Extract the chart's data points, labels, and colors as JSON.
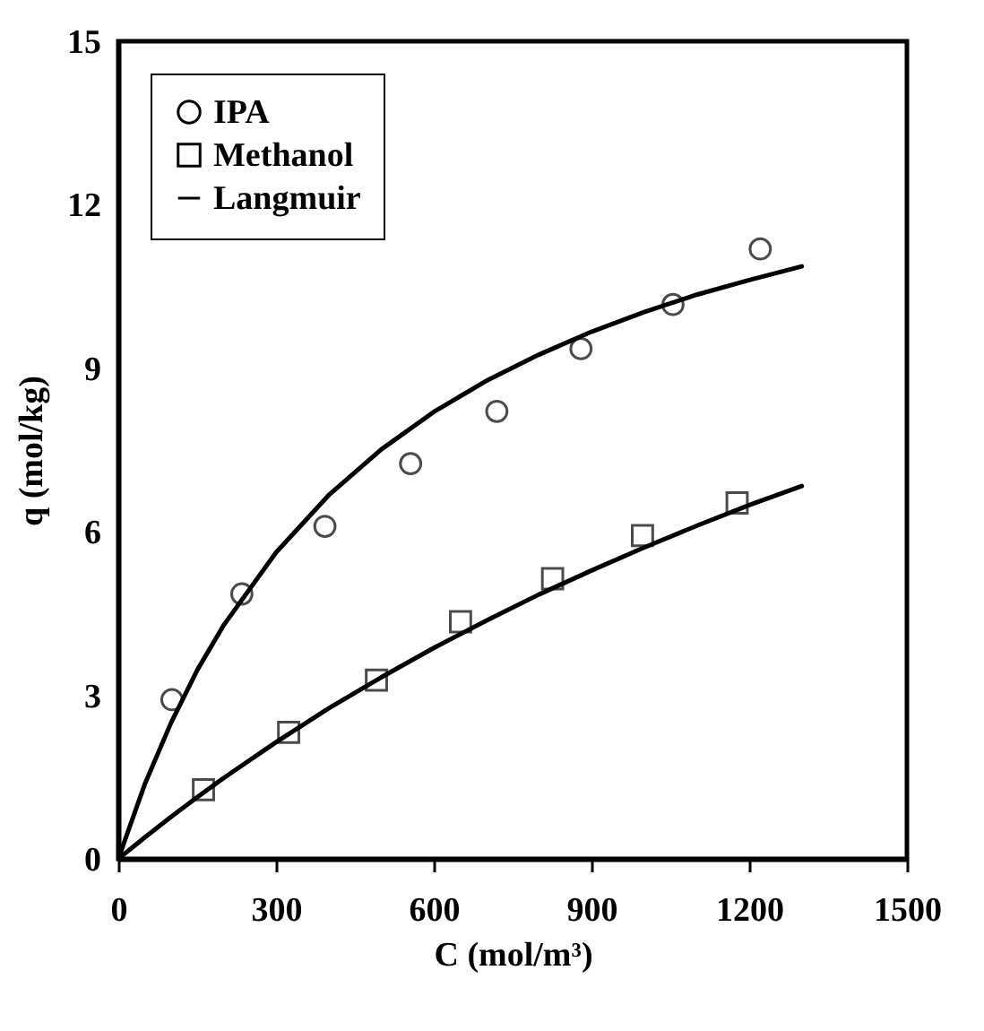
{
  "chart_data": {
    "type": "scatter",
    "xlabel": "C (mol/m³)",
    "ylabel": "q (mol/kg)",
    "xlim": [
      0,
      1500
    ],
    "xticks": [
      0,
      300,
      600,
      900,
      1200,
      1500
    ],
    "ylim": [
      0,
      15
    ],
    "yticks": [
      0,
      3,
      6,
      9,
      12,
      15
    ],
    "grid": false,
    "legend": "top left",
    "series": [
      {
        "name": "IPA",
        "marker": "circle",
        "color": "#000000",
        "x": [
          102,
          235,
          393,
          556,
          720,
          880,
          1055,
          1221
        ],
        "values": [
          2.92,
          4.86,
          6.1,
          7.25,
          8.21,
          9.36,
          10.17,
          11.19
        ]
      },
      {
        "name": "Methanol",
        "marker": "square",
        "color": "#000000",
        "x": [
          162,
          324,
          491,
          651,
          826,
          997,
          1177
        ],
        "values": [
          1.27,
          2.32,
          3.28,
          4.35,
          5.14,
          5.93,
          6.53
        ]
      },
      {
        "name": "Langmuir",
        "type": "line",
        "line_style": "solid",
        "color": "#000000",
        "x": [
          0,
          50,
          100,
          150,
          200,
          300,
          400,
          500,
          600,
          700,
          800,
          900,
          1000,
          1100,
          1200,
          1300
        ],
        "values": [
          0,
          1.36,
          2.49,
          3.46,
          4.28,
          5.62,
          6.67,
          7.51,
          8.2,
          8.77,
          9.25,
          9.67,
          10.03,
          10.35,
          10.62,
          10.87
        ]
      },
      {
        "type": "line",
        "line_style": "solid",
        "color": "#000000",
        "x": [
          0,
          50,
          100,
          150,
          200,
          300,
          400,
          500,
          600,
          700,
          800,
          900,
          1000,
          1100,
          1200,
          1300
        ],
        "values": [
          0,
          0.39,
          0.77,
          1.13,
          1.48,
          2.14,
          2.76,
          3.33,
          3.87,
          4.37,
          4.85,
          5.29,
          5.71,
          6.11,
          6.49,
          6.84
        ]
      }
    ]
  }
}
